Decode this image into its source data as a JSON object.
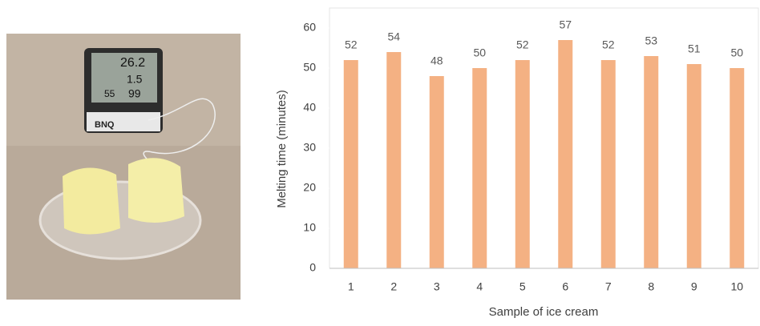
{
  "photo": {
    "display_texts": [
      "26.2",
      "1.5",
      "55",
      "99",
      "BNQ"
    ]
  },
  "chart_data": {
    "type": "bar",
    "x_label": "Sample of ice cream",
    "y_label": "Melting time (minutes)",
    "categories": [
      "1",
      "2",
      "3",
      "4",
      "5",
      "6",
      "7",
      "8",
      "9",
      "10"
    ],
    "values": [
      52,
      54,
      48,
      50,
      52,
      57,
      52,
      53,
      51,
      50
    ],
    "color": "#f4b183",
    "ylim": [
      0,
      65
    ],
    "yticks": [
      0,
      10,
      20,
      30,
      40,
      50,
      60
    ],
    "grid": false,
    "data_labels": true
  }
}
